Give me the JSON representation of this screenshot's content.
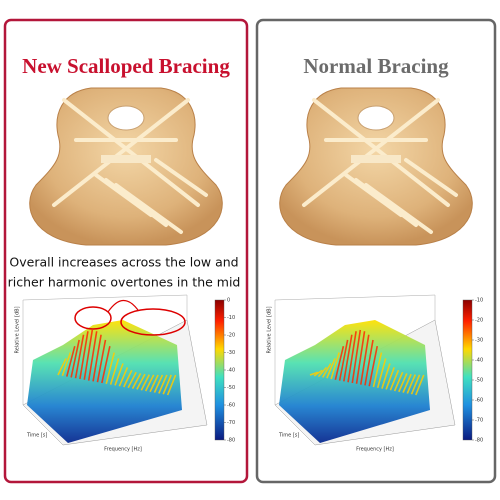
{
  "panels": [
    {
      "title": "New Scalloped Bracing",
      "annotation": [
        "Overall increases across the low and",
        "richer harmonic overtones in the mid"
      ],
      "plot": {
        "level_label": "Relative Level [dB]",
        "frequency_label": "Frequency [Hz]",
        "time_label": "Time [s]",
        "colorbar_ticks": [
          "0",
          "-10",
          "-20",
          "-30",
          "-40",
          "-50",
          "-60",
          "-70",
          "-80"
        ]
      }
    },
    {
      "title": "Normal Bracing",
      "plot": {
        "level_label": "Relative Level [dB]",
        "frequency_label": "Frequency [Hz]",
        "time_label": "Time [s]",
        "colorbar_ticks": [
          "-10",
          "-20",
          "-30",
          "-40",
          "-50",
          "-60",
          "-70",
          "-80"
        ]
      }
    }
  ]
}
